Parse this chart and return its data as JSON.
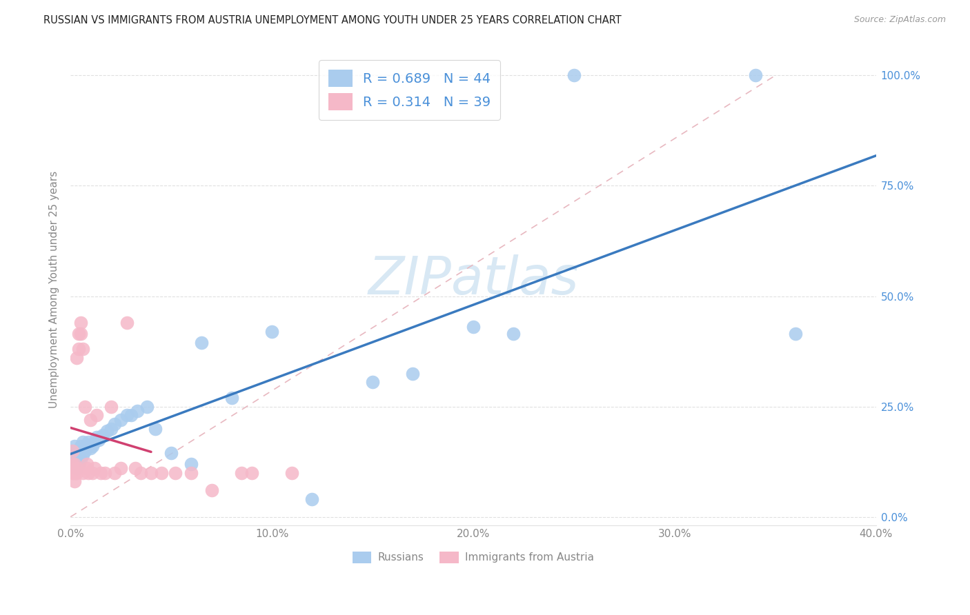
{
  "title": "RUSSIAN VS IMMIGRANTS FROM AUSTRIA UNEMPLOYMENT AMONG YOUTH UNDER 25 YEARS CORRELATION CHART",
  "source": "Source: ZipAtlas.com",
  "xlabel_ticks": [
    "0.0%",
    "10.0%",
    "20.0%",
    "30.0%",
    "40.0%"
  ],
  "ylabel_ticks": [
    "0.0%",
    "25.0%",
    "50.0%",
    "75.0%",
    "100.0%"
  ],
  "xmin": 0.0,
  "xmax": 0.4,
  "ymin": -0.02,
  "ymax": 1.05,
  "ylabel": "Unemployment Among Youth under 25 years",
  "russians_x": [
    0.001,
    0.001,
    0.002,
    0.002,
    0.003,
    0.003,
    0.004,
    0.004,
    0.005,
    0.005,
    0.006,
    0.006,
    0.007,
    0.008,
    0.009,
    0.01,
    0.011,
    0.012,
    0.013,
    0.014,
    0.015,
    0.016,
    0.018,
    0.02,
    0.022,
    0.025,
    0.028,
    0.03,
    0.033,
    0.038,
    0.042,
    0.05,
    0.06,
    0.065,
    0.08,
    0.1,
    0.12,
    0.15,
    0.17,
    0.2,
    0.22,
    0.25,
    0.34,
    0.36
  ],
  "russians_y": [
    0.12,
    0.15,
    0.13,
    0.16,
    0.11,
    0.14,
    0.12,
    0.15,
    0.13,
    0.16,
    0.14,
    0.17,
    0.15,
    0.16,
    0.17,
    0.155,
    0.16,
    0.17,
    0.18,
    0.175,
    0.18,
    0.185,
    0.195,
    0.2,
    0.21,
    0.22,
    0.23,
    0.23,
    0.24,
    0.25,
    0.2,
    0.145,
    0.12,
    0.395,
    0.27,
    0.42,
    0.04,
    0.305,
    0.325,
    0.43,
    0.415,
    1.0,
    1.0,
    0.415
  ],
  "austria_x": [
    0.001,
    0.001,
    0.001,
    0.002,
    0.002,
    0.002,
    0.003,
    0.003,
    0.003,
    0.004,
    0.004,
    0.005,
    0.005,
    0.006,
    0.006,
    0.007,
    0.008,
    0.008,
    0.009,
    0.01,
    0.011,
    0.012,
    0.013,
    0.015,
    0.017,
    0.02,
    0.022,
    0.025,
    0.028,
    0.032,
    0.035,
    0.04,
    0.045,
    0.052,
    0.06,
    0.07,
    0.085,
    0.09,
    0.11
  ],
  "austria_y": [
    0.12,
    0.15,
    0.1,
    0.12,
    0.1,
    0.08,
    0.1,
    0.11,
    0.36,
    0.38,
    0.415,
    0.44,
    0.415,
    0.38,
    0.1,
    0.25,
    0.11,
    0.12,
    0.1,
    0.22,
    0.1,
    0.11,
    0.23,
    0.1,
    0.1,
    0.25,
    0.1,
    0.11,
    0.44,
    0.11,
    0.1,
    0.1,
    0.1,
    0.1,
    0.1,
    0.06,
    0.1,
    0.1,
    0.1
  ],
  "russian_reg_color": "#3a7abf",
  "austria_reg_color": "#d04070",
  "russian_scatter_color": "#aaccee",
  "austria_scatter_color": "#f5b8c8",
  "diag_color": "#e8b8c0",
  "legend_text_color": "#4a90d9",
  "watermark_color": "#d8e8f4",
  "background_color": "#ffffff",
  "grid_color": "#e0e0e0",
  "tick_color": "#888888",
  "ytick_color": "#4a90d9"
}
